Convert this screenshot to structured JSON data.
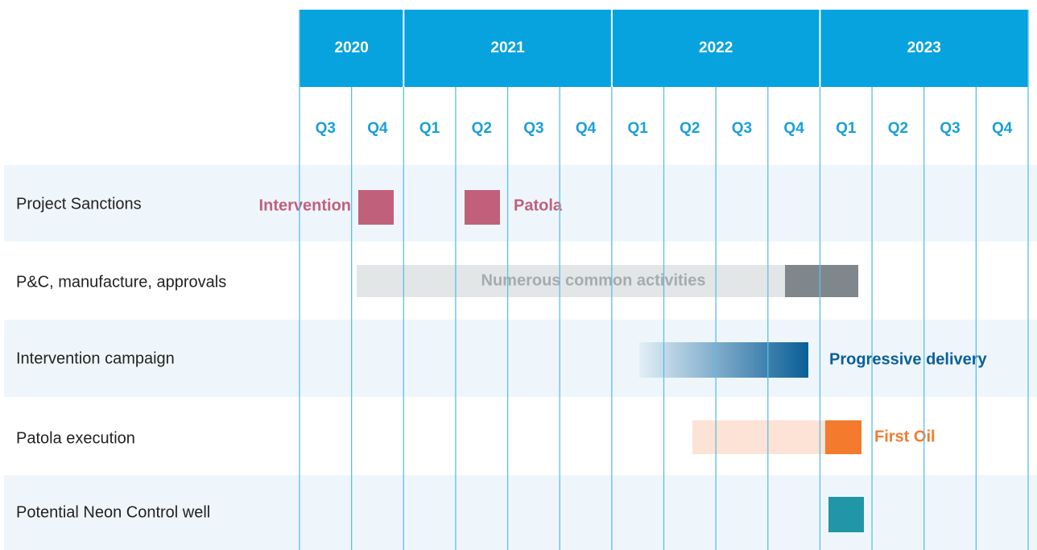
{
  "years": [
    "2020",
    "2021",
    "2022",
    "2023"
  ],
  "quarters": [
    "Q3",
    "Q4",
    "Q1",
    "Q2",
    "Q3",
    "Q4",
    "Q1",
    "Q2",
    "Q3",
    "Q4",
    "Q1",
    "Q2",
    "Q3",
    "Q4"
  ],
  "rows": [
    "Project Sanctions",
    "P&C, manufacture, approvals",
    "Intervention campaign",
    "Patola execution",
    "Potential Neon Control well"
  ],
  "annotations": [
    "Intervention",
    "Patola",
    "Numerous common activities",
    "Progressive delivery",
    "First Oil"
  ]
}
